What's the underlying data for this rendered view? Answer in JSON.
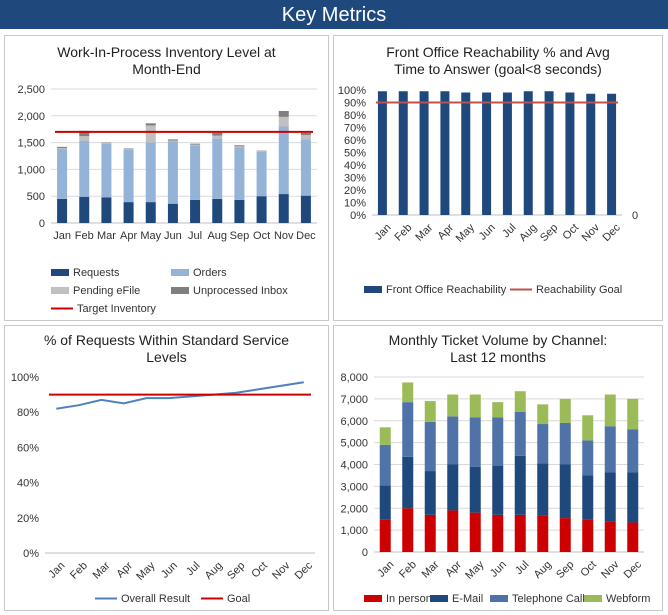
{
  "header": {
    "title": "Key Metrics"
  },
  "colors": {
    "navy": "#1f497d",
    "steel": "#4f73a8",
    "light_blue": "#95b3d7",
    "light_gray": "#c0c0c0",
    "dark_gray": "#7f7f7f",
    "red": "#cc0000",
    "green": "#9bbb59",
    "line_blue": "#4f81bd"
  },
  "chart_data": [
    {
      "id": "wip",
      "type": "bar",
      "stacked": true,
      "title_lines": [
        "Work-In-Process Inventory Level at",
        "Month-End"
      ],
      "categories": [
        "Jan",
        "Feb",
        "Mar",
        "Apr",
        "May",
        "Jun",
        "Jul",
        "Aug",
        "Sep",
        "Oct",
        "Nov",
        "Dec"
      ],
      "ylim": [
        0,
        2500
      ],
      "yticks": [
        "0",
        "500",
        "1,000",
        "1,500",
        "2,000",
        "2,500"
      ],
      "series": [
        {
          "name": "Requests",
          "values": [
            450,
            490,
            480,
            390,
            390,
            360,
            430,
            450,
            430,
            500,
            540,
            510
          ]
        },
        {
          "name": "Orders",
          "values": [
            930,
            1040,
            1000,
            980,
            1110,
            1160,
            1020,
            1130,
            980,
            830,
            1260,
            1050
          ]
        },
        {
          "name": "Pending eFile",
          "values": [
            20,
            90,
            10,
            10,
            320,
            20,
            15,
            50,
            20,
            10,
            180,
            80
          ]
        },
        {
          "name": "Unprocessed Inbox",
          "values": [
            20,
            100,
            10,
            10,
            40,
            20,
            15,
            50,
            20,
            10,
            110,
            40
          ]
        }
      ],
      "target": {
        "name": "Target Inventory",
        "value": 1700
      },
      "legend": {
        "position": "bottom"
      }
    },
    {
      "id": "reach",
      "type": "bar",
      "title_lines": [
        "Front Office Reachability % and Avg",
        "Time to Answer (goal<8 seconds)"
      ],
      "categories": [
        "Jan",
        "Feb",
        "Mar",
        "Apr",
        "May",
        "Jun",
        "Jul",
        "Aug",
        "Sep",
        "Oct",
        "Nov",
        "Dec"
      ],
      "ylim": [
        0,
        100
      ],
      "yticks": [
        "0%",
        "10%",
        "20%",
        "30%",
        "40%",
        "50%",
        "60%",
        "70%",
        "80%",
        "90%",
        "100%"
      ],
      "secondary_axis_label": "0",
      "series": [
        {
          "name": "Front Office Reachability",
          "values": [
            99,
            99,
            99,
            99,
            98,
            98,
            98,
            99,
            99,
            98,
            97,
            97
          ]
        }
      ],
      "goal": {
        "name": "Reachability Goal",
        "value": 90
      },
      "legend": {
        "position": "bottom"
      }
    },
    {
      "id": "sla",
      "type": "line",
      "title_lines": [
        "% of Requests Within Standard Service",
        "Levels"
      ],
      "categories": [
        "Jan",
        "Feb",
        "Mar",
        "Apr",
        "May",
        "Jun",
        "Jul",
        "Aug",
        "Sep",
        "Oct",
        "Nov",
        "Dec"
      ],
      "ylim": [
        0,
        100
      ],
      "yticks": [
        "0%",
        "20%",
        "40%",
        "60%",
        "80%",
        "100%"
      ],
      "series": [
        {
          "name": "Overall Result",
          "values": [
            82,
            84,
            87,
            85,
            88,
            88,
            89,
            90,
            91,
            93,
            95,
            97
          ]
        }
      ],
      "goal": {
        "name": "Goal",
        "value": 90
      },
      "legend": {
        "position": "bottom"
      }
    },
    {
      "id": "tickets",
      "type": "bar",
      "stacked": true,
      "title_lines": [
        "Monthly Ticket Volume by Channel:",
        "Last 12 months"
      ],
      "categories": [
        "Jan",
        "Feb",
        "Mar",
        "Apr",
        "May",
        "Jun",
        "Jul",
        "Aug",
        "Sep",
        "Oct",
        "Nov",
        "Dec"
      ],
      "ylim": [
        0,
        8000
      ],
      "yticks": [
        "0",
        "1,000",
        "2,000",
        "3,000",
        "4,000",
        "5,000",
        "6,000",
        "7,000",
        "8,000"
      ],
      "series": [
        {
          "name": "In person",
          "values": [
            1500,
            2000,
            1700,
            1900,
            1800,
            1700,
            1700,
            1650,
            1550,
            1500,
            1400,
            1350
          ]
        },
        {
          "name": "E-Mail",
          "values": [
            1550,
            2350,
            2000,
            2100,
            2100,
            2250,
            2700,
            2400,
            2450,
            2000,
            2250,
            2300
          ]
        },
        {
          "name": "Telephone Call",
          "values": [
            1850,
            2500,
            2250,
            2200,
            2250,
            2200,
            2000,
            1800,
            1900,
            1600,
            2100,
            1950
          ]
        },
        {
          "name": "Webform",
          "values": [
            800,
            900,
            950,
            1000,
            1050,
            700,
            950,
            900,
            1100,
            1150,
            1450,
            1400
          ]
        }
      ],
      "legend": {
        "position": "bottom"
      }
    }
  ]
}
